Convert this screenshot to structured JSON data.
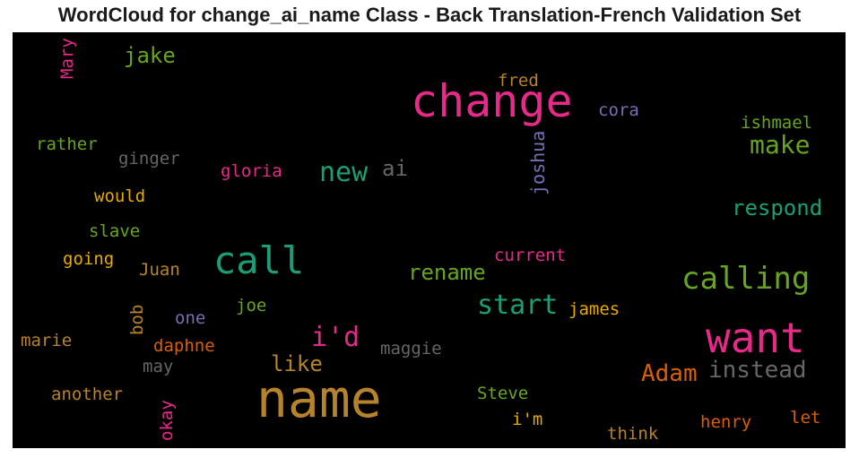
{
  "chart_data": {
    "type": "wordcloud",
    "title": "WordCloud for change_ai_name Class - Back Translation-French Validation Set",
    "background": "#000000",
    "words": [
      {
        "text": "name",
        "size": 58,
        "color": "#b7832a",
        "vertical": false
      },
      {
        "text": "change",
        "size": 50,
        "color": "#e7298a",
        "vertical": false
      },
      {
        "text": "want",
        "size": 46,
        "color": "#e7298a",
        "vertical": false
      },
      {
        "text": "call",
        "size": 42,
        "color": "#1b9e77",
        "vertical": false
      },
      {
        "text": "calling",
        "size": 34,
        "color": "#66a61e",
        "vertical": false
      },
      {
        "text": "start",
        "size": 30,
        "color": "#1b9e77",
        "vertical": false
      },
      {
        "text": "i'd",
        "size": 30,
        "color": "#e7298a",
        "vertical": false
      },
      {
        "text": "new",
        "size": 30,
        "color": "#1b9e77",
        "vertical": false
      },
      {
        "text": "make",
        "size": 28,
        "color": "#66a61e",
        "vertical": false
      },
      {
        "text": "instead",
        "size": 26,
        "color": "#666666",
        "vertical": false
      },
      {
        "text": "Adam",
        "size": 26,
        "color": "#d95f02",
        "vertical": false
      },
      {
        "text": "respond",
        "size": 24,
        "color": "#1b9e77",
        "vertical": false
      },
      {
        "text": "rename",
        "size": 24,
        "color": "#66a61e",
        "vertical": false
      },
      {
        "text": "like",
        "size": 24,
        "color": "#b7832a",
        "vertical": false
      },
      {
        "text": "jake",
        "size": 24,
        "color": "#66a61e",
        "vertical": false
      },
      {
        "text": "ai",
        "size": 24,
        "color": "#666666",
        "vertical": false
      },
      {
        "text": "joshua",
        "size": 20,
        "color": "#7570b3",
        "vertical": true
      },
      {
        "text": "current",
        "size": 19,
        "color": "#e7298a",
        "vertical": false
      },
      {
        "text": "fred",
        "size": 19,
        "color": "#b7832a",
        "vertical": false
      },
      {
        "text": "cora",
        "size": 19,
        "color": "#7570b3",
        "vertical": false
      },
      {
        "text": "ishmael",
        "size": 19,
        "color": "#66a61e",
        "vertical": false
      },
      {
        "text": "gloria",
        "size": 19,
        "color": "#e7298a",
        "vertical": false
      },
      {
        "text": "ginger",
        "size": 19,
        "color": "#666666",
        "vertical": false
      },
      {
        "text": "rather",
        "size": 19,
        "color": "#66a61e",
        "vertical": false
      },
      {
        "text": "would",
        "size": 19,
        "color": "#e6ab02",
        "vertical": false
      },
      {
        "text": "slave",
        "size": 19,
        "color": "#66a61e",
        "vertical": false
      },
      {
        "text": "going",
        "size": 19,
        "color": "#e6ab02",
        "vertical": false
      },
      {
        "text": "Juan",
        "size": 19,
        "color": "#b7832a",
        "vertical": false
      },
      {
        "text": "james",
        "size": 19,
        "color": "#e6ab02",
        "vertical": false
      },
      {
        "text": "joe",
        "size": 19,
        "color": "#66a61e",
        "vertical": false
      },
      {
        "text": "one",
        "size": 19,
        "color": "#7570b3",
        "vertical": false
      },
      {
        "text": "bob",
        "size": 19,
        "color": "#b7832a",
        "vertical": true
      },
      {
        "text": "marie",
        "size": 19,
        "color": "#b7832a",
        "vertical": false
      },
      {
        "text": "daphne",
        "size": 19,
        "color": "#d95f02",
        "vertical": false
      },
      {
        "text": "maggie",
        "size": 19,
        "color": "#666666",
        "vertical": false
      },
      {
        "text": "may",
        "size": 19,
        "color": "#666666",
        "vertical": false
      },
      {
        "text": "another",
        "size": 19,
        "color": "#b7832a",
        "vertical": false
      },
      {
        "text": "Steve",
        "size": 19,
        "color": "#66a61e",
        "vertical": false
      },
      {
        "text": "okay",
        "size": 19,
        "color": "#e7298a",
        "vertical": true
      },
      {
        "text": "i'm",
        "size": 19,
        "color": "#e6ab02",
        "vertical": false
      },
      {
        "text": "think",
        "size": 19,
        "color": "#b7832a",
        "vertical": false
      },
      {
        "text": "henry",
        "size": 19,
        "color": "#d95f02",
        "vertical": false
      },
      {
        "text": "let",
        "size": 19,
        "color": "#d95f02",
        "vertical": false
      },
      {
        "text": "Mary",
        "size": 19,
        "color": "#e7298a",
        "vertical": true
      }
    ]
  }
}
